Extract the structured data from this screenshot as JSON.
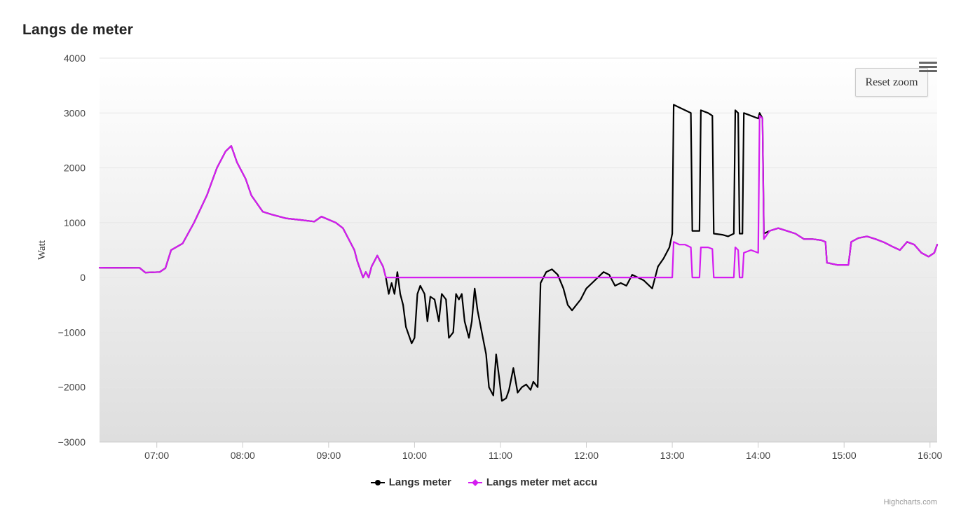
{
  "title": "Langs de meter",
  "reset_zoom_label": "Reset zoom",
  "menu_icon": "hamburger-menu-icon",
  "credits": "Highcharts.com",
  "chart_data": {
    "type": "line",
    "title": "Langs de meter",
    "xlabel": "",
    "ylabel": "Watt",
    "ylim": [
      -3000,
      4000
    ],
    "xlim": [
      "06:20",
      "16:05"
    ],
    "yticks": [
      -3000,
      -2000,
      -1000,
      0,
      1000,
      2000,
      3000,
      4000
    ],
    "xticks": [
      "07:00",
      "08:00",
      "09:00",
      "10:00",
      "11:00",
      "12:00",
      "13:00",
      "14:00",
      "15:00",
      "16:00"
    ],
    "grid": true,
    "legend": "bottom-center",
    "series": [
      {
        "name": "Langs meter",
        "color": "#000000",
        "points": [
          [
            "06:20",
            180
          ],
          [
            "06:48",
            175
          ],
          [
            "06:52",
            90
          ],
          [
            "07:02",
            100
          ],
          [
            "07:06",
            170
          ],
          [
            "07:10",
            500
          ],
          [
            "07:18",
            620
          ],
          [
            "07:26",
            1000
          ],
          [
            "07:35",
            1500
          ],
          [
            "07:42",
            2000
          ],
          [
            "07:48",
            2300
          ],
          [
            "07:52",
            2400
          ],
          [
            "07:56",
            2100
          ],
          [
            "08:02",
            1800
          ],
          [
            "08:06",
            1500
          ],
          [
            "08:14",
            1200
          ],
          [
            "08:20",
            1150
          ],
          [
            "08:30",
            1080
          ],
          [
            "08:40",
            1050
          ],
          [
            "08:50",
            1020
          ],
          [
            "08:55",
            1110
          ],
          [
            "09:05",
            1000
          ],
          [
            "09:10",
            900
          ],
          [
            "09:14",
            700
          ],
          [
            "09:18",
            500
          ],
          [
            "09:20",
            300
          ],
          [
            "09:22",
            150
          ],
          [
            "09:24",
            0
          ],
          [
            "09:26",
            100
          ],
          [
            "09:28",
            0
          ],
          [
            "09:30",
            200
          ],
          [
            "09:32",
            300
          ],
          [
            "09:34",
            400
          ],
          [
            "09:36",
            300
          ],
          [
            "09:38",
            200
          ],
          [
            "09:40",
            0
          ],
          [
            "09:42",
            -300
          ],
          [
            "09:44",
            -100
          ],
          [
            "09:46",
            -300
          ],
          [
            "09:48",
            100
          ],
          [
            "09:50",
            -300
          ],
          [
            "09:52",
            -500
          ],
          [
            "09:54",
            -900
          ],
          [
            "09:58",
            -1200
          ],
          [
            "10:00",
            -1100
          ],
          [
            "10:02",
            -300
          ],
          [
            "10:04",
            -150
          ],
          [
            "10:07",
            -300
          ],
          [
            "10:09",
            -800
          ],
          [
            "10:11",
            -350
          ],
          [
            "10:14",
            -400
          ],
          [
            "10:17",
            -800
          ],
          [
            "10:19",
            -300
          ],
          [
            "10:22",
            -400
          ],
          [
            "10:24",
            -1100
          ],
          [
            "10:27",
            -1000
          ],
          [
            "10:29",
            -300
          ],
          [
            "10:31",
            -400
          ],
          [
            "10:33",
            -300
          ],
          [
            "10:35",
            -800
          ],
          [
            "10:38",
            -1100
          ],
          [
            "10:40",
            -800
          ],
          [
            "10:42",
            -200
          ],
          [
            "10:44",
            -600
          ],
          [
            "10:47",
            -1000
          ],
          [
            "10:50",
            -1400
          ],
          [
            "10:52",
            -2000
          ],
          [
            "10:55",
            -2150
          ],
          [
            "10:57",
            -1400
          ],
          [
            "10:59",
            -1800
          ],
          [
            "11:01",
            -2250
          ],
          [
            "11:04",
            -2200
          ],
          [
            "11:06",
            -2050
          ],
          [
            "11:09",
            -1650
          ],
          [
            "11:12",
            -2100
          ],
          [
            "11:15",
            -2000
          ],
          [
            "11:18",
            -1950
          ],
          [
            "11:21",
            -2050
          ],
          [
            "11:23",
            -1900
          ],
          [
            "11:26",
            -2000
          ],
          [
            "11:28",
            -100
          ],
          [
            "11:32",
            100
          ],
          [
            "11:36",
            150
          ],
          [
            "11:40",
            50
          ],
          [
            "11:44",
            -200
          ],
          [
            "11:47",
            -500
          ],
          [
            "11:50",
            -600
          ],
          [
            "11:56",
            -400
          ],
          [
            "12:00",
            -200
          ],
          [
            "12:04",
            -100
          ],
          [
            "12:08",
            0
          ],
          [
            "12:12",
            100
          ],
          [
            "12:16",
            50
          ],
          [
            "12:20",
            -150
          ],
          [
            "12:24",
            -100
          ],
          [
            "12:28",
            -150
          ],
          [
            "12:32",
            50
          ],
          [
            "12:36",
            0
          ],
          [
            "12:40",
            -50
          ],
          [
            "12:46",
            -200
          ],
          [
            "12:50",
            200
          ],
          [
            "12:54",
            350
          ],
          [
            "12:58",
            550
          ],
          [
            "13:00",
            800
          ],
          [
            "13:01",
            3150
          ],
          [
            "13:05",
            3100
          ],
          [
            "13:09",
            3050
          ],
          [
            "13:13",
            3000
          ],
          [
            "13:14",
            850
          ],
          [
            "13:17",
            850
          ],
          [
            "13:19",
            850
          ],
          [
            "13:20",
            3050
          ],
          [
            "13:25",
            3000
          ],
          [
            "13:28",
            2950
          ],
          [
            "13:29",
            800
          ],
          [
            "13:35",
            780
          ],
          [
            "13:39",
            750
          ],
          [
            "13:43",
            800
          ],
          [
            "13:44",
            3050
          ],
          [
            "13:46",
            3000
          ],
          [
            "13:47",
            800
          ],
          [
            "13:49",
            800
          ],
          [
            "13:50",
            3000
          ],
          [
            "13:55",
            2950
          ],
          [
            "14:00",
            2900
          ],
          [
            "14:01",
            3000
          ],
          [
            "14:03",
            2900
          ],
          [
            "14:04",
            800
          ],
          [
            "14:08",
            850
          ],
          [
            "14:14",
            900
          ],
          [
            "14:20",
            850
          ],
          [
            "14:26",
            800
          ],
          [
            "14:32",
            700
          ],
          [
            "14:38",
            700
          ],
          [
            "14:44",
            680
          ],
          [
            "14:47",
            650
          ],
          [
            "14:48",
            270
          ],
          [
            "14:55",
            230
          ],
          [
            "15:03",
            230
          ],
          [
            "15:05",
            650
          ],
          [
            "15:10",
            720
          ],
          [
            "15:16",
            750
          ],
          [
            "15:22",
            700
          ],
          [
            "15:28",
            640
          ],
          [
            "15:34",
            560
          ],
          [
            "15:39",
            500
          ],
          [
            "15:44",
            650
          ],
          [
            "15:49",
            600
          ],
          [
            "15:54",
            450
          ],
          [
            "15:59",
            380
          ],
          [
            "16:03",
            450
          ],
          [
            "16:05",
            600
          ]
        ]
      },
      {
        "name": "Langs meter met accu",
        "color": "#d41cf0",
        "points": [
          [
            "06:20",
            180
          ],
          [
            "06:48",
            175
          ],
          [
            "06:52",
            90
          ],
          [
            "07:02",
            100
          ],
          [
            "07:06",
            170
          ],
          [
            "07:10",
            500
          ],
          [
            "07:18",
            620
          ],
          [
            "07:26",
            1000
          ],
          [
            "07:35",
            1500
          ],
          [
            "07:42",
            2000
          ],
          [
            "07:48",
            2300
          ],
          [
            "07:52",
            2400
          ],
          [
            "07:56",
            2100
          ],
          [
            "08:02",
            1800
          ],
          [
            "08:06",
            1500
          ],
          [
            "08:14",
            1200
          ],
          [
            "08:20",
            1150
          ],
          [
            "08:30",
            1080
          ],
          [
            "08:40",
            1050
          ],
          [
            "08:50",
            1020
          ],
          [
            "08:55",
            1110
          ],
          [
            "09:05",
            1000
          ],
          [
            "09:10",
            900
          ],
          [
            "09:14",
            700
          ],
          [
            "09:18",
            500
          ],
          [
            "09:20",
            300
          ],
          [
            "09:22",
            150
          ],
          [
            "09:24",
            0
          ],
          [
            "09:26",
            100
          ],
          [
            "09:28",
            0
          ],
          [
            "09:30",
            200
          ],
          [
            "09:32",
            300
          ],
          [
            "09:34",
            400
          ],
          [
            "09:36",
            300
          ],
          [
            "09:38",
            200
          ],
          [
            "09:40",
            0
          ],
          [
            "12:58",
            0
          ],
          [
            "13:00",
            0
          ],
          [
            "13:01",
            650
          ],
          [
            "13:05",
            600
          ],
          [
            "13:09",
            600
          ],
          [
            "13:13",
            550
          ],
          [
            "13:14",
            0
          ],
          [
            "13:19",
            0
          ],
          [
            "13:20",
            550
          ],
          [
            "13:25",
            550
          ],
          [
            "13:28",
            520
          ],
          [
            "13:29",
            0
          ],
          [
            "13:43",
            0
          ],
          [
            "13:44",
            550
          ],
          [
            "13:46",
            500
          ],
          [
            "13:47",
            0
          ],
          [
            "13:49",
            0
          ],
          [
            "13:50",
            450
          ],
          [
            "13:55",
            500
          ],
          [
            "14:00",
            450
          ],
          [
            "14:01",
            2950
          ],
          [
            "14:03",
            2900
          ],
          [
            "14:04",
            700
          ],
          [
            "14:08",
            850
          ],
          [
            "14:14",
            900
          ],
          [
            "14:20",
            850
          ],
          [
            "14:26",
            800
          ],
          [
            "14:32",
            700
          ],
          [
            "14:38",
            700
          ],
          [
            "14:44",
            680
          ],
          [
            "14:47",
            650
          ],
          [
            "14:48",
            270
          ],
          [
            "14:55",
            230
          ],
          [
            "15:03",
            230
          ],
          [
            "15:05",
            650
          ],
          [
            "15:10",
            720
          ],
          [
            "15:16",
            750
          ],
          [
            "15:22",
            700
          ],
          [
            "15:28",
            640
          ],
          [
            "15:34",
            560
          ],
          [
            "15:39",
            500
          ],
          [
            "15:44",
            650
          ],
          [
            "15:49",
            600
          ],
          [
            "15:54",
            450
          ],
          [
            "15:59",
            380
          ],
          [
            "16:03",
            450
          ],
          [
            "16:05",
            600
          ]
        ]
      }
    ]
  }
}
